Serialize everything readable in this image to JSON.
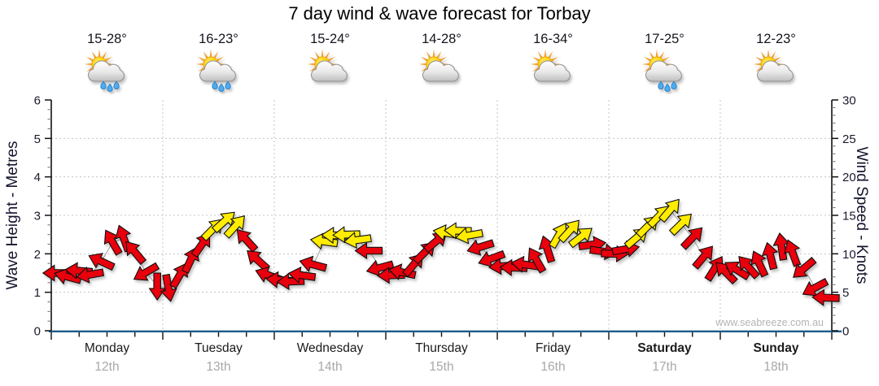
{
  "title": "7 day wind & wave forecast for Torbay",
  "watermark": "www.seabreeze.com.au",
  "days": [
    {
      "name": "Monday",
      "date": "12th",
      "temp": "15-28°",
      "icon": "sun-cloud-rain",
      "weekend": false
    },
    {
      "name": "Tuesday",
      "date": "13th",
      "temp": "16-23°",
      "icon": "sun-cloud-rain",
      "weekend": false
    },
    {
      "name": "Wednesday",
      "date": "14th",
      "temp": "15-24°",
      "icon": "sun-cloud",
      "weekend": false
    },
    {
      "name": "Thursday",
      "date": "15th",
      "temp": "14-28°",
      "icon": "sun-cloud",
      "weekend": false
    },
    {
      "name": "Friday",
      "date": "16th",
      "temp": "16-34°",
      "icon": "sun-cloud",
      "weekend": false
    },
    {
      "name": "Saturday",
      "date": "17th",
      "temp": "17-25°",
      "icon": "sun-cloud-rain",
      "weekend": true
    },
    {
      "name": "Sunday",
      "date": "18th",
      "temp": "12-23°",
      "icon": "sun-cloud",
      "weekend": true
    }
  ],
  "chart_data": {
    "type": "scatter",
    "marker": "direction-arrows",
    "title": "7 day wind & wave forecast for Torbay",
    "x_axis": {
      "unit": "hours from Monday 00:00",
      "range": [
        0,
        168
      ],
      "day_labels": [
        "Monday 12th",
        "Tuesday 13th",
        "Wednesday 14th",
        "Thursday 15th",
        "Friday 16th",
        "Saturday 17th",
        "Sunday 18th"
      ],
      "minor_tick_hours": 6
    },
    "y_left": {
      "label": "Wave Height - Metres",
      "range": [
        0,
        6
      ],
      "major_ticks": [
        0,
        1,
        2,
        3,
        4,
        5,
        6
      ],
      "minor_step": 0.25,
      "gridlines": [
        1,
        2,
        3,
        4,
        5
      ]
    },
    "y_right": {
      "label": "Wind Speed - Knots",
      "range": [
        0,
        30
      ],
      "major_ticks": [
        0,
        5,
        10,
        15,
        20,
        25,
        30
      ],
      "minor_step": 1
    },
    "grid": "dotted horizontal at each metre, dotted vertical at day boundaries",
    "point_format": "[hours, wind_speed_knots, arrow_direction_deg (0=pointing east, 90=pointing south), band r=red y=yellow]",
    "points": [
      [
        1.2,
        7.5,
        180,
        "r"
      ],
      [
        3.6,
        7.0,
        195,
        "r"
      ],
      [
        6.0,
        7.8,
        185,
        "r"
      ],
      [
        8.4,
        7.3,
        170,
        "r"
      ],
      [
        10.8,
        9.0,
        205,
        "r"
      ],
      [
        13.2,
        11.5,
        240,
        "r"
      ],
      [
        15.6,
        12.0,
        250,
        "r"
      ],
      [
        18.0,
        10.2,
        230,
        "r"
      ],
      [
        20.4,
        7.6,
        150,
        "r"
      ],
      [
        22.8,
        5.8,
        90,
        "r"
      ],
      [
        25.2,
        5.6,
        80,
        "r"
      ],
      [
        27.6,
        7.2,
        300,
        "r"
      ],
      [
        30.0,
        9.2,
        295,
        "r"
      ],
      [
        32.4,
        11.2,
        305,
        "r"
      ],
      [
        34.8,
        13.2,
        315,
        "y"
      ],
      [
        37.2,
        14.2,
        318,
        "y"
      ],
      [
        39.6,
        13.6,
        312,
        "y"
      ],
      [
        42.0,
        11.8,
        228,
        "r"
      ],
      [
        44.4,
        9.2,
        222,
        "r"
      ],
      [
        46.8,
        7.2,
        200,
        "r"
      ],
      [
        49.2,
        6.6,
        185,
        "r"
      ],
      [
        51.6,
        6.4,
        178,
        "r"
      ],
      [
        54.0,
        7.2,
        188,
        "r"
      ],
      [
        56.4,
        8.6,
        195,
        "r"
      ],
      [
        58.8,
        11.6,
        188,
        "y"
      ],
      [
        61.2,
        12.4,
        182,
        "y"
      ],
      [
        63.6,
        12.5,
        178,
        "y"
      ],
      [
        66.0,
        11.8,
        172,
        "y"
      ],
      [
        68.4,
        10.4,
        180,
        "r"
      ],
      [
        70.8,
        8.2,
        165,
        "r"
      ],
      [
        73.2,
        7.2,
        178,
        "r"
      ],
      [
        75.6,
        7.6,
        192,
        "r"
      ],
      [
        78.0,
        8.6,
        310,
        "r"
      ],
      [
        80.4,
        10.2,
        315,
        "r"
      ],
      [
        82.8,
        11.6,
        320,
        "r"
      ],
      [
        85.2,
        12.7,
        190,
        "y"
      ],
      [
        87.6,
        13.0,
        181,
        "y"
      ],
      [
        90.0,
        12.4,
        170,
        "y"
      ],
      [
        92.4,
        10.9,
        163,
        "r"
      ],
      [
        94.8,
        9.4,
        160,
        "r"
      ],
      [
        97.2,
        8.4,
        175,
        "r"
      ],
      [
        99.6,
        8.2,
        182,
        "r"
      ],
      [
        102.0,
        8.6,
        188,
        "r"
      ],
      [
        104.4,
        9.2,
        240,
        "r"
      ],
      [
        106.8,
        10.6,
        252,
        "r"
      ],
      [
        109.2,
        12.4,
        300,
        "y"
      ],
      [
        111.6,
        13.0,
        312,
        "y"
      ],
      [
        114.0,
        12.2,
        322,
        "y"
      ],
      [
        116.4,
        11.2,
        352,
        "r"
      ],
      [
        118.8,
        10.3,
        8,
        "r"
      ],
      [
        121.2,
        10.0,
        2,
        "r"
      ],
      [
        123.6,
        10.6,
        350,
        "r"
      ],
      [
        126.0,
        12.1,
        320,
        "y"
      ],
      [
        128.4,
        13.6,
        315,
        "y"
      ],
      [
        130.8,
        14.9,
        314,
        "y"
      ],
      [
        133.2,
        15.7,
        310,
        "y"
      ],
      [
        135.6,
        13.9,
        316,
        "y"
      ],
      [
        138.0,
        12.1,
        314,
        "r"
      ],
      [
        140.4,
        9.6,
        310,
        "r"
      ],
      [
        142.8,
        8.1,
        302,
        "r"
      ],
      [
        145.2,
        7.6,
        225,
        "r"
      ],
      [
        147.6,
        7.9,
        212,
        "r"
      ],
      [
        150.0,
        8.3,
        228,
        "r"
      ],
      [
        152.4,
        8.7,
        245,
        "r"
      ],
      [
        154.8,
        9.7,
        256,
        "r"
      ],
      [
        157.2,
        10.9,
        262,
        "r"
      ],
      [
        159.6,
        10.1,
        250,
        "r"
      ],
      [
        162.0,
        8.1,
        140,
        "r"
      ],
      [
        164.4,
        5.6,
        152,
        "r"
      ],
      [
        166.8,
        4.3,
        182,
        "r"
      ]
    ]
  },
  "colors": {
    "arrow_red": "#e8000d",
    "arrow_yellow": "#ffec00",
    "arrow_outline": "#111111",
    "connector": "#a0a0a0",
    "grid": "#c4c4c4",
    "axis_dark": "#111111",
    "axis_bottom_blue": "#1d5a88",
    "tick_label": "#1a1a2e",
    "day_name": "#1a1a1a",
    "day_date": "#a8a8a8",
    "watermark": "#b4b4b4",
    "sun": "#ffcf00",
    "sun_rays": "#f0a030",
    "cloud": "#d9d9d9",
    "rain_drop": "#4dabf0"
  }
}
